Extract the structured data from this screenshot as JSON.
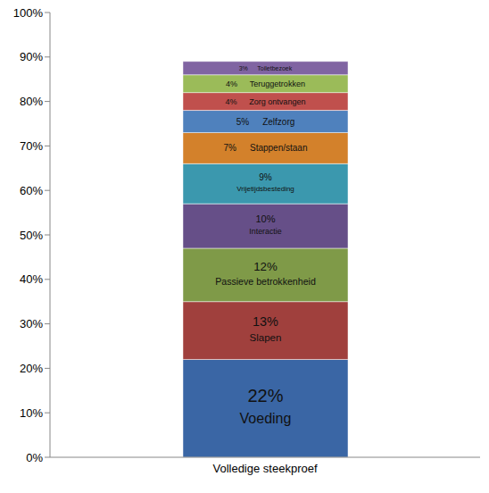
{
  "chart_data": {
    "type": "bar",
    "stacked": true,
    "data_labels": true,
    "grid": false,
    "categories": [
      "Volledige steekproef"
    ],
    "ylim": [
      0,
      100
    ],
    "yticks": [
      {
        "value": 0,
        "label": "0%"
      },
      {
        "value": 10,
        "label": "10%"
      },
      {
        "value": 20,
        "label": "20%"
      },
      {
        "value": 30,
        "label": "30%"
      },
      {
        "value": 40,
        "label": "40%"
      },
      {
        "value": 50,
        "label": "50%"
      },
      {
        "value": 60,
        "label": "60%"
      },
      {
        "value": 70,
        "label": "70%"
      },
      {
        "value": 80,
        "label": "80%"
      },
      {
        "value": 90,
        "label": "90%"
      },
      {
        "value": 100,
        "label": "100%"
      }
    ],
    "series": [
      {
        "name": "Voeding",
        "color": "#3a66a5",
        "values": [
          22
        ],
        "value_labels": [
          "22%"
        ]
      },
      {
        "name": "Slapen",
        "color": "#a0403d",
        "values": [
          13
        ],
        "value_labels": [
          "13%"
        ]
      },
      {
        "name": "Passieve betrokkenheid",
        "color": "#7f9a48",
        "values": [
          12
        ],
        "value_labels": [
          "12%"
        ]
      },
      {
        "name": "Interactie",
        "color": "#664f88",
        "values": [
          10
        ],
        "value_labels": [
          "10%"
        ]
      },
      {
        "name": "Vrijetijdsbesteding",
        "color": "#3b98ae",
        "values": [
          9
        ],
        "value_labels": [
          "9%"
        ]
      },
      {
        "name": "Stappen/staan",
        "color": "#d3812b",
        "values": [
          7
        ],
        "value_labels": [
          "7%"
        ]
      },
      {
        "name": "Zelfzorg",
        "color": "#4f81bd",
        "values": [
          5
        ],
        "value_labels": [
          "5%"
        ]
      },
      {
        "name": "Zorg ontvangen",
        "color": "#c0504d",
        "values": [
          4
        ],
        "value_labels": [
          "4%"
        ]
      },
      {
        "name": "Teruggetrokken",
        "color": "#9bbb59",
        "values": [
          4
        ],
        "value_labels": [
          "4%"
        ]
      },
      {
        "name": "Toiletbezoek",
        "color": "#8064a2",
        "values": [
          3
        ],
        "value_labels": [
          "3%"
        ]
      }
    ]
  }
}
